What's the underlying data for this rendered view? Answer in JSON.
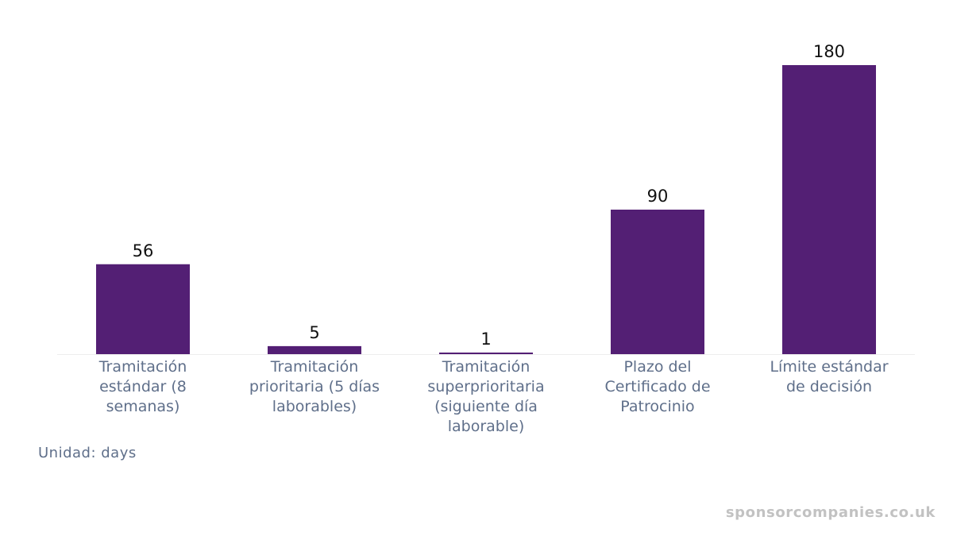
{
  "chart_data": {
    "type": "bar",
    "categories": [
      [
        "Tramitación",
        "estándar (8",
        "semanas)"
      ],
      [
        "Tramitación",
        "prioritaria (5 días",
        "laborables)"
      ],
      [
        "Tramitación",
        "superprioritaria",
        "(siguiente día",
        "laborable)"
      ],
      [
        "Plazo del",
        "Certificado de",
        "Patrocinio"
      ],
      [
        "Límite estándar",
        "de decisión"
      ]
    ],
    "values": [
      56,
      5,
      1,
      90,
      180
    ],
    "data_labels": [
      "56",
      "5",
      "1",
      "90",
      "180"
    ],
    "ylim": [
      0,
      180
    ],
    "bar_color": "#531f74",
    "axis_color": "#eeeeee",
    "label_color": "#5f6f8a",
    "value_label_color": "#111111",
    "grid": false,
    "legend": "none"
  },
  "unit_note": "Unidad: days",
  "watermark": "sponsorcompanies.co.uk"
}
